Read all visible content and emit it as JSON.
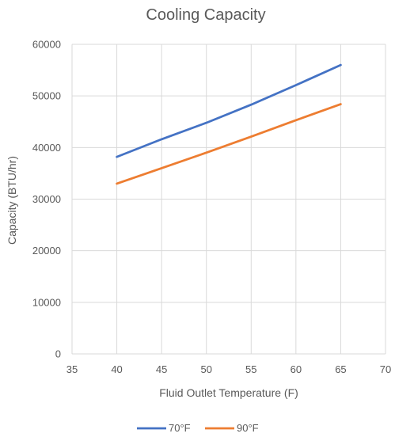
{
  "chart_data": {
    "type": "line",
    "title": "Cooling Capacity",
    "xlabel": "Fluid Outlet Temperature (F)",
    "ylabel": "Capacity (BTU/hr)",
    "xlim": [
      35,
      70
    ],
    "ylim": [
      0,
      60000
    ],
    "xticks": [
      35,
      40,
      45,
      50,
      55,
      60,
      65,
      70
    ],
    "yticks": [
      0,
      10000,
      20000,
      30000,
      40000,
      50000,
      60000
    ],
    "xtick_labels": [
      "35",
      "40",
      "45",
      "50",
      "55",
      "60",
      "65",
      "70"
    ],
    "ytick_labels": [
      "0",
      "10000",
      "20000",
      "30000",
      "40000",
      "50000",
      "60000"
    ],
    "grid": true,
    "legend_position": "bottom",
    "series": [
      {
        "name": "70°F",
        "color": "#4472C4",
        "x": [
          40,
          45,
          50,
          55,
          60,
          65
        ],
        "y": [
          38200,
          41600,
          44800,
          48300,
          52100,
          56000
        ]
      },
      {
        "name": "90°F",
        "color": "#ED7D31",
        "x": [
          40,
          45,
          50,
          55,
          60,
          65
        ],
        "y": [
          33000,
          36000,
          39000,
          42100,
          45300,
          48400
        ]
      }
    ]
  }
}
